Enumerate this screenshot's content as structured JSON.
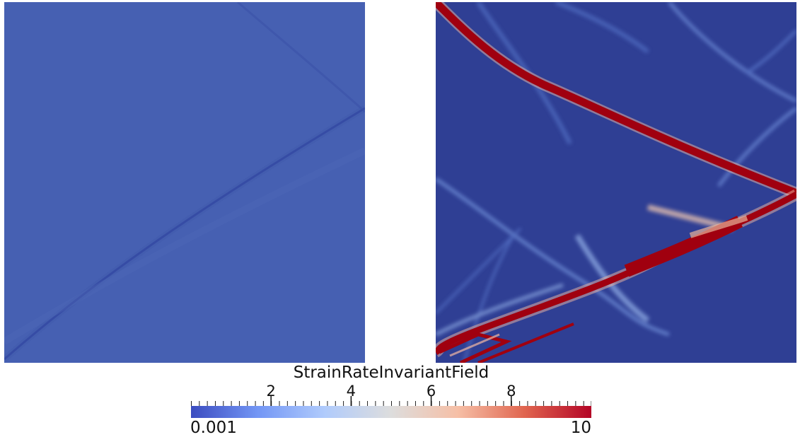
{
  "legend": {
    "title": "StrainRateInvariantField",
    "range_min_label": "0.001",
    "range_max_label": "10",
    "range": [
      0.001,
      10
    ],
    "ticks": [
      {
        "value": 2,
        "label": "2"
      },
      {
        "value": 4,
        "label": "4"
      },
      {
        "value": 6,
        "label": "6"
      },
      {
        "value": 8,
        "label": "8"
      }
    ],
    "colormap": [
      "#3b4cc0",
      "#7396f5",
      "#b0cbfc",
      "#dddddd",
      "#f6bfa6",
      "#e0654f",
      "#b40426"
    ]
  },
  "panels": {
    "left_background": "#4660b2",
    "right_background": "#2f3f94",
    "band_color": "#a0000f"
  }
}
